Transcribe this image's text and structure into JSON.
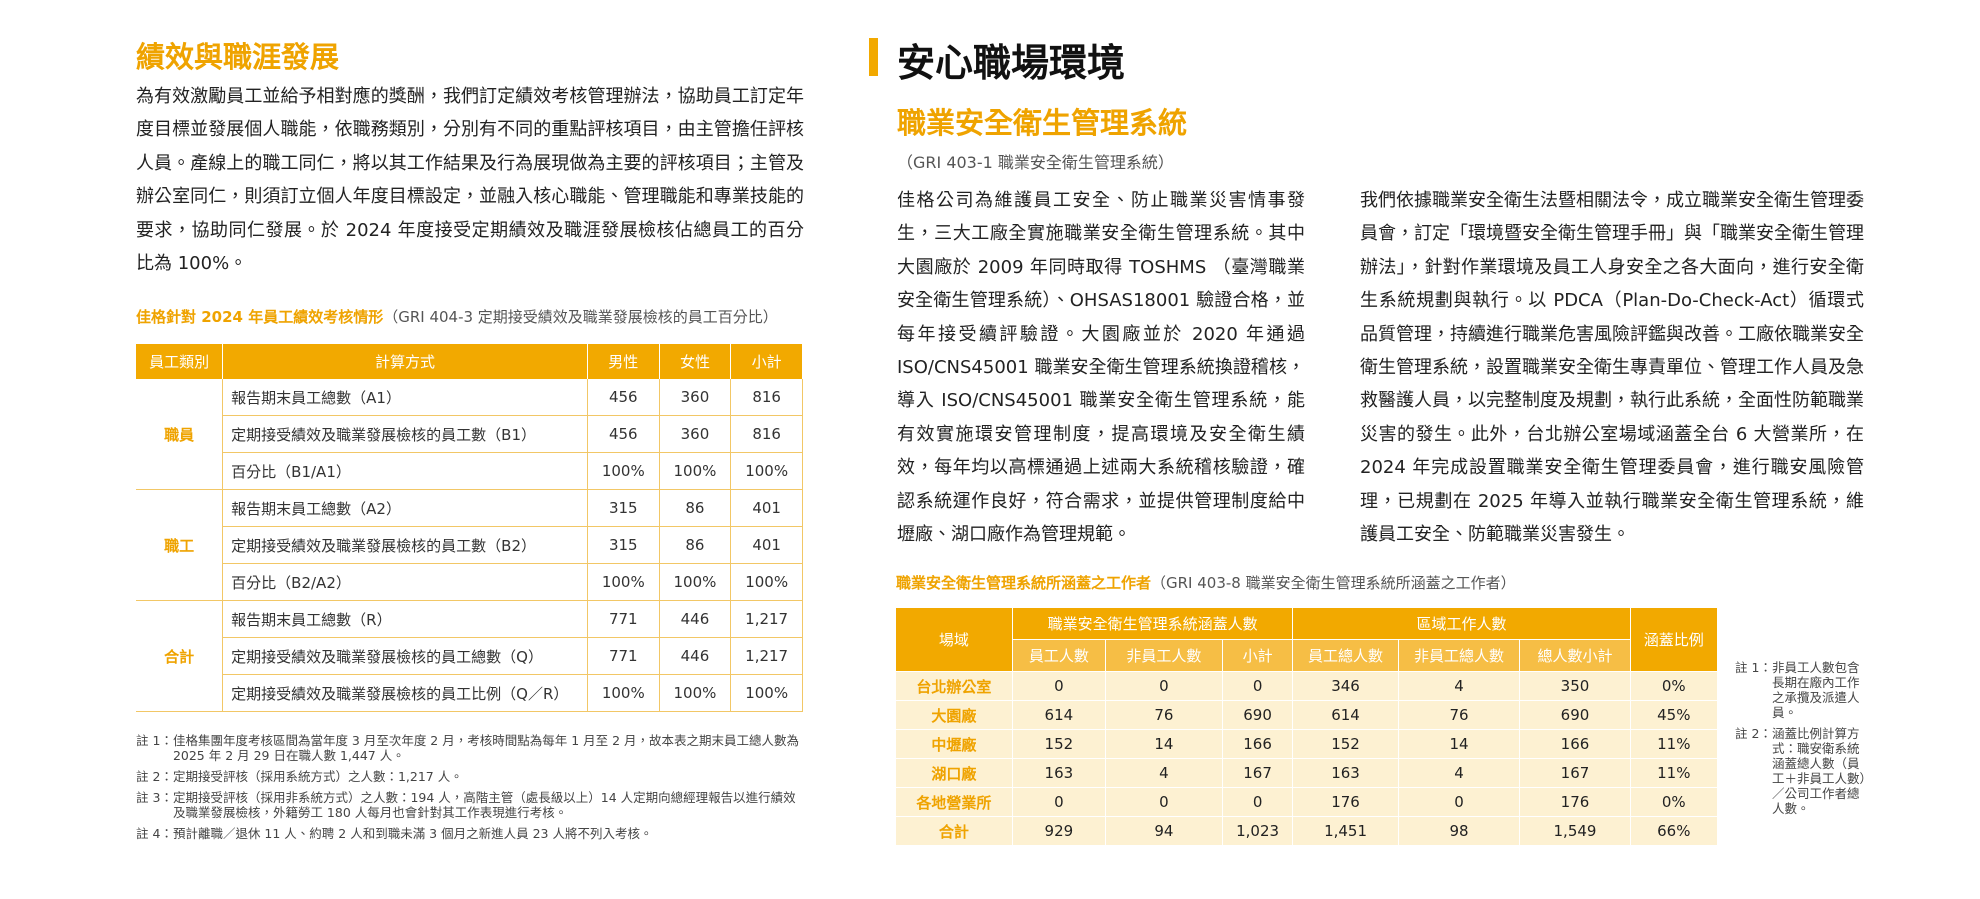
{
  "left": {
    "title": "績效與職涯發展",
    "paragraph": "為有效激勵員工並給予相對應的獎酬，我們訂定績效考核管理辦法，協助員工訂定年度目標並發展個人職能，依職務類別，分別有不同的重點評核項目，由主管擔任評核人員。產線上的職工同仁，將以其工作結果及行為展現做為主要的評核項目；主管及辦公室同仁，則須訂立個人年度目標設定，並融入核心職能、管理職能和專業技能的要求，協助同仁發展。於 2024 年度接受定期績效及職涯發展檢核佔總員工的百分比為 100%。",
    "table": {
      "title": "佳格針對 2024 年員工績效考核情形",
      "subtitle": "（GRI 404-3 定期接受績效及職業發展檢核的員工百分比）",
      "header": [
        "員工類別",
        "計算方式",
        "男性",
        "女性",
        "小計"
      ],
      "groups": [
        {
          "name": "職員",
          "rows": [
            [
              "報告期末員工總數（A1）",
              "456",
              "360",
              "816"
            ],
            [
              "定期接受績效及職業發展檢核的員工數（B1）",
              "456",
              "360",
              "816"
            ],
            [
              "百分比（B1/A1）",
              "100%",
              "100%",
              "100%"
            ]
          ]
        },
        {
          "name": "職工",
          "rows": [
            [
              "報告期末員工總數（A2）",
              "315",
              "86",
              "401"
            ],
            [
              "定期接受績效及職業發展檢核的員工數（B2）",
              "315",
              "86",
              "401"
            ],
            [
              "百分比（B2/A2）",
              "100%",
              "100%",
              "100%"
            ]
          ]
        },
        {
          "name": "合計",
          "rows": [
            [
              "報告期末員工總數（R）",
              "771",
              "446",
              "1,217"
            ],
            [
              "定期接受績效及職業發展檢核的員工總數（Q）",
              "771",
              "446",
              "1,217"
            ],
            [
              "定期接受績效及職業發展檢核的員工比例（Q／R）",
              "100%",
              "100%",
              "100%"
            ]
          ]
        }
      ]
    },
    "notes": [
      {
        "label": "註 1：",
        "text": "佳格集團年度考核區間為當年度 3 月至次年度 2 月，考核時間點為每年 1 月至 2 月，故本表之期末員工總人數為 2025 年 2 月 29 日在職人數 1,447 人。"
      },
      {
        "label": "註 2：",
        "text": "定期接受評核（採用系統方式）之人數：1,217 人。"
      },
      {
        "label": "註 3：",
        "text": "定期接受評核（採用非系統方式）之人數：194 人，高階主管（處長級以上）14 人定期向總經理報告以進行績效及職業發展檢核，外籍勞工 180 人每月也會針對其工作表現進行考核。"
      },
      {
        "label": "註 4：",
        "text": "預計離職／退休 11 人、約聘 2 人和到職未滿 3 個月之新進人員 23 人將不列入考核。"
      }
    ]
  },
  "right": {
    "title": "安心職場環境",
    "subtitle": "職業安全衛生管理系統",
    "gri": "（GRI 403-1 職業安全衛生管理系統）",
    "paragraphs": [
      "佳格公司為維護員工安全、防止職業災害情事發生，三大工廠全實施職業安全衛生管理系統。其中大園廠於 2009 年同時取得 TOSHMS （臺灣職業安全衛生管理系統）、OHSAS18001 驗證合格，並每年接受續評驗證。大園廠並於 2020 年通過 ISO/CNS45001 職業安全衛生管理系統換證稽核，導入 ISO/CNS45001 職業安全衛生管理系統，能有效實施環安管理制度，提高環境及安全衛生績效，每年均以高標通過上述兩大系統稽核驗證，確認系統運作良好，符合需求，並提供管理制度給中壢廠、湖口廠作為管理規範。",
      "我們依據職業安全衛生法暨相關法令，成立職業安全衛生管理委員會，訂定「環境暨安全衛生管理手冊」與「職業安全衛生管理辦法」，針對作業環境及員工人身安全之各大面向，進行安全衛生系統規劃與執行。以 PDCA（Plan-Do-Check-Act）循環式品質管理，持續進行職業危害風險評鑑與改善。工廠依職業安全衛生管理系統，設置職業安全衛生專責單位、管理工作人員及急救醫護人員，以完整制度及規劃，執行此系統，全面性防範職業災害的發生。此外，台北辦公室場域涵蓋全台 6 大營業所，在 2024 年完成設置職業安全衛生管理委員會，進行職安風險管理，已規劃在 2025 年導入並執行職業安全衛生管理系統，維護員工安全、防範職業災害發生。"
    ],
    "table": {
      "title": "職業安全衛生管理系統所涵蓋之工作者",
      "subtitle": "（GRI 403-8 職業安全衛生管理系統所涵蓋之工作者）",
      "site_header": "場域",
      "group_headers": [
        "職業安全衛生管理系統涵蓋人數",
        "區域工作人數"
      ],
      "ratio_header": "涵蓋比例",
      "sub_headers": [
        "員工人數",
        "非員工人數",
        "小計",
        "員工總人數",
        "非員工總人數",
        "總人數小計"
      ],
      "rows": [
        [
          "台北辦公室",
          "0",
          "0",
          "0",
          "346",
          "4",
          "350",
          "0%"
        ],
        [
          "大園廠",
          "614",
          "76",
          "690",
          "614",
          "76",
          "690",
          "45%"
        ],
        [
          "中壢廠",
          "152",
          "14",
          "166",
          "152",
          "14",
          "166",
          "11%"
        ],
        [
          "湖口廠",
          "163",
          "4",
          "167",
          "163",
          "4",
          "167",
          "11%"
        ],
        [
          "各地營業所",
          "0",
          "0",
          "0",
          "176",
          "0",
          "176",
          "0%"
        ],
        [
          "合計",
          "929",
          "94",
          "1,023",
          "1,451",
          "98",
          "1,549",
          "66%"
        ]
      ]
    },
    "notes": [
      {
        "label": "註 1：",
        "text": "非員工人數包含長期在廠內工作之承攬及派遣人員。"
      },
      {
        "label": "註 2：",
        "text": "涵蓋比例計算方式：職安衛系統涵蓋總人數（員工＋非員工人數）／公司工作者總人數。"
      }
    ]
  }
}
